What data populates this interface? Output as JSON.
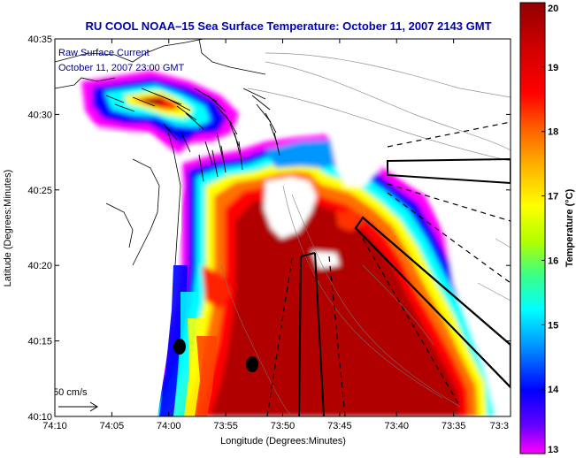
{
  "title": "RU COOL  NOAA–15  Sea Surface Temperature:  October 11, 2007 2143 GMT",
  "overlay": {
    "line1": "Raw Surface Current",
    "line2": "October 11, 2007 23:00 GMT"
  },
  "scale_label": "50 cm/s",
  "colorbar": {
    "label": "Temperature (°C)",
    "min": 13,
    "max": 20,
    "ticks": [
      "13",
      "14",
      "15",
      "16",
      "17",
      "18",
      "19",
      "20"
    ],
    "colors": [
      "#ff00ff",
      "#6a00ff",
      "#0000ff",
      "#0096ff",
      "#00ffff",
      "#40ff80",
      "#b0ff00",
      "#ffff00",
      "#ffb000",
      "#ff6000",
      "#ff0000",
      "#d00000",
      "#900000"
    ]
  },
  "chart_data": {
    "type": "heatmap",
    "title": "RU COOL  NOAA–15  Sea Surface Temperature:  October 11, 2007 2143 GMT",
    "xlabel": "Longitude (Degrees:Minutes)",
    "ylabel": "Latitude (Degrees:Minutes)",
    "x_ticks": [
      "74:10",
      "74:05",
      "74:00",
      "73:55",
      "73:50",
      "73:45",
      "73:40",
      "73:35",
      "73:3"
    ],
    "y_ticks": [
      "40:35",
      "40:30",
      "40:25",
      "40:20",
      "40:15",
      "40:10"
    ],
    "colorbar_range": [
      13,
      20
    ],
    "colorbar_label": "Temperature (°C)"
  }
}
